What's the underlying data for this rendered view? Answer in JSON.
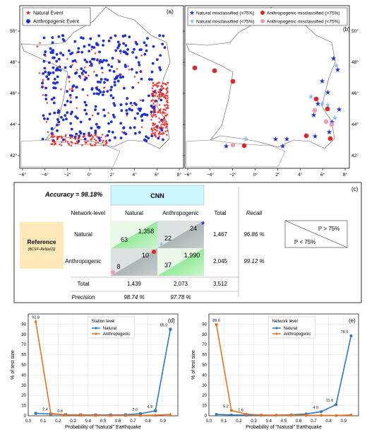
{
  "maps": {
    "left": {
      "panel_label": "(a)",
      "legend": [
        {
          "label": "Natural Event",
          "color": "#e8221c",
          "marker": "star"
        },
        {
          "label": "Anthropogenic Event",
          "color": "#1d2fd6",
          "marker": "circle"
        }
      ],
      "y_ticks": [
        "50°",
        "48°",
        "46°",
        "44°",
        "42°"
      ],
      "x_ticks": [
        "−6°",
        "−4°",
        "−2°",
        "0°",
        "2°",
        "4°",
        "6°",
        "8°"
      ]
    },
    "right": {
      "panel_label": "(b)",
      "legend": [
        {
          "label": "Natural misclassified (>75%)",
          "color": "#1d2fd6",
          "marker": "star"
        },
        {
          "label": "Natural misclassified (<75%)",
          "color": "#8fb9ea",
          "marker": "star"
        },
        {
          "label": "Anthropogenic misclassified (>75%)",
          "color": "#e8221c",
          "marker": "circle"
        },
        {
          "label": "Anthropogenic misclassified (<75%)",
          "color": "#f09bb8",
          "marker": "circle"
        }
      ],
      "y_ticks": [
        "50°",
        "48°",
        "46°",
        "44°",
        "42°"
      ],
      "x_ticks": [
        "−6°",
        "−4°",
        "−2°",
        "0°",
        "2°",
        "4°",
        "6°",
        "8°"
      ]
    }
  },
  "matrix": {
    "panel_label": "(c)",
    "accuracy": "Accuracy = 98.18%",
    "cnn_header": "CNN",
    "network_level": "Network-level",
    "col_natural": "Natural",
    "col_anthro": "Anthropogenic",
    "col_total": "Total",
    "col_recall": "Recall",
    "reference_title": "Reference",
    "reference_sub": "(BCSF–RéNaSS)",
    "row_natural": "Natural",
    "row_anthro": "Anthropogenic",
    "row_total": "Total",
    "row_precision": "Precision",
    "nn_low": "63",
    "nn_high": "1,358",
    "na_low": "22",
    "na_high": "24",
    "an_low": "8",
    "an_high": "10",
    "aa_low": "37",
    "aa_high": "1,990",
    "total_natural_row": "1,467",
    "total_anthro_row": "2,045",
    "recall_natural": "96.86 %",
    "recall_anthro": "99.12 %",
    "total_natural_col": "1,439",
    "total_anthro_col": "2,073",
    "total_all": "3,512",
    "precision_natural": "98.74 %",
    "precision_anthro": "97.78 %",
    "key_high": "ℙ > 75%",
    "key_low": "ℙ < 75%"
  },
  "chart_data": [
    {
      "type": "line",
      "panel_label": "(d)",
      "legend_title": "Station level",
      "xlabel": "Probability of \"Natural\" Earthquake",
      "ylabel": "% of test size",
      "xlim": [
        0,
        1
      ],
      "ylim": [
        0,
        100
      ],
      "x_ticks": [
        0.0,
        0.1,
        0.2,
        0.3,
        0.4,
        0.5,
        0.6,
        0.7,
        0.8,
        0.9
      ],
      "y_ticks": [
        0,
        10,
        20,
        30,
        40,
        50,
        60,
        70,
        80,
        90
      ],
      "x": [
        0.05,
        0.15,
        0.25,
        0.35,
        0.45,
        0.55,
        0.65,
        0.75,
        0.85,
        0.95
      ],
      "series": [
        {
          "name": "Natural",
          "color": "#2a78c4",
          "marker": "square",
          "values": [
            2.4,
            1.8,
            1.1,
            0.9,
            0.8,
            0.8,
            1.0,
            2.0,
            4.9,
            85.0
          ],
          "labels": [
            null,
            null,
            null,
            null,
            null,
            null,
            null,
            "2.0",
            "4.9",
            "85.0"
          ]
        },
        {
          "name": "Anthropogenic",
          "color": "#e8731f",
          "marker": "triangle",
          "values": [
            92.8,
            2.4,
            0.8,
            0.6,
            0.4,
            0.4,
            0.4,
            0.4,
            0.6,
            1.4
          ],
          "labels": [
            "92.8",
            "2.4",
            "0.8",
            null,
            null,
            null,
            null,
            null,
            null,
            null
          ]
        }
      ]
    },
    {
      "type": "line",
      "panel_label": "(e)",
      "legend_title": "Network level",
      "xlabel": "Probability of \"Natural\" Earthquake",
      "ylabel": "% of test size",
      "xlim": [
        0,
        1
      ],
      "ylim": [
        0,
        100
      ],
      "x_ticks": [
        0.0,
        0.1,
        0.2,
        0.3,
        0.4,
        0.5,
        0.6,
        0.7,
        0.8,
        0.9
      ],
      "y_ticks": [
        0,
        10,
        20,
        30,
        40,
        50,
        60,
        70,
        80,
        90
      ],
      "x": [
        0.05,
        0.15,
        0.25,
        0.35,
        0.45,
        0.55,
        0.65,
        0.75,
        0.85,
        0.95
      ],
      "series": [
        {
          "name": "Natural",
          "color": "#2a78c4",
          "marker": "circle",
          "values": [
            1.4,
            0.8,
            0.6,
            0.5,
            0.6,
            0.9,
            1.8,
            4.0,
            11.0,
            78.5
          ],
          "labels": [
            null,
            null,
            null,
            null,
            null,
            null,
            null,
            "4.0",
            "11.0",
            "78.5"
          ]
        },
        {
          "name": "Anthropogenic",
          "color": "#e8731f",
          "marker": "circle",
          "values": [
            89.6,
            5.2,
            1.6,
            0.8,
            0.5,
            0.4,
            0.4,
            0.4,
            0.3,
            0.8
          ],
          "labels": [
            "89.6",
            "5.2",
            "1.6",
            null,
            null,
            null,
            null,
            null,
            null,
            null
          ]
        }
      ]
    }
  ]
}
